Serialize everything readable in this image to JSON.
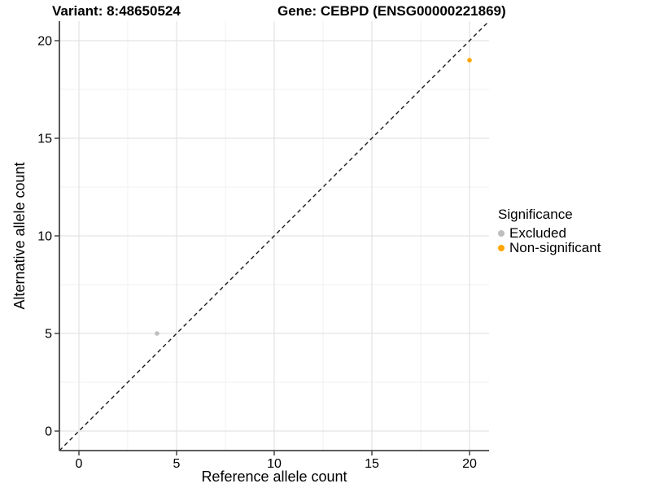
{
  "header": {
    "variant_title": "Variant: 8:48650524",
    "gene_title": "Gene: CEBPD (ENSG00000221869)"
  },
  "chart_data": {
    "type": "scatter",
    "title": "Variant: 8:48650524 — Gene: CEBPD (ENSG00000221869)",
    "xlabel": "Reference allele count",
    "ylabel": "Alternative allele count",
    "xlim": [
      -1,
      21
    ],
    "ylim": [
      -1,
      21
    ],
    "x_ticks": [
      0,
      5,
      10,
      15,
      20
    ],
    "y_ticks": [
      0,
      5,
      10,
      15,
      20
    ],
    "minor_breaks": [
      2.5,
      7.5,
      12.5,
      17.5
    ],
    "grid": {
      "enabled": true,
      "major_color": "#E3E3E3",
      "minor_color": "#F0F0F0"
    },
    "axis_color": "#464646",
    "reference_line": {
      "style": "dashed",
      "equation": "y = x",
      "color": "#1A1A1A"
    },
    "series": [
      {
        "name": "Excluded",
        "significance": "Excluded",
        "color": "#BEBEBE",
        "points": [
          {
            "x": 4,
            "y": 5
          }
        ]
      },
      {
        "name": "Non-significant",
        "significance": "Non-significant",
        "color": "#FFA500",
        "points": [
          {
            "x": 20,
            "y": 19
          }
        ]
      }
    ],
    "legend": {
      "title": "Significance",
      "position": "right"
    }
  },
  "legend": {
    "title": "Significance",
    "items": [
      {
        "label": "Excluded",
        "color": "#BEBEBE"
      },
      {
        "label": "Non-significant",
        "color": "#FFA500"
      }
    ]
  }
}
